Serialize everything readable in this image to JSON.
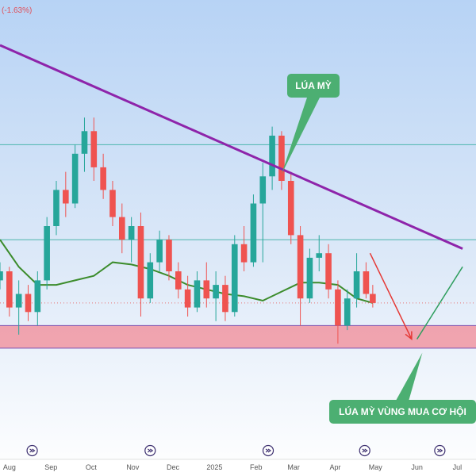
{
  "header": {
    "change_text": "(-1.63%)"
  },
  "colors": {
    "up": "#26a69a",
    "down": "#ef5350",
    "trendline": "#8e24aa",
    "ma": "#3c8c2c",
    "zone": "#f28a96",
    "zone_border": "#7b4fb0",
    "hline": "#4db6ac",
    "callout": "#4caf72",
    "arrow_down": "#e53935",
    "arrow_up": "#2e9e5e"
  },
  "callouts": {
    "top": "LÚA MỲ",
    "bottom": "LÚA MỲ VÙNG MUA CƠ HỘI"
  },
  "events": {
    "icon": "event-icon"
  },
  "chart_data": {
    "type": "candlestick",
    "title": "",
    "x_ticks": [
      "Aug",
      "Sep",
      "Oct",
      "Nov",
      "Dec",
      "2025",
      "Feb",
      "Mar",
      "Apr",
      "May",
      "Jun",
      "Jul"
    ],
    "x_range": [
      "2024-07-25",
      "2025-07-15"
    ],
    "y_range": [
      0,
      100
    ],
    "y_axis": "hidden",
    "grid": false,
    "reference_lines": [
      {
        "kind": "horizontal",
        "value": 68
      },
      {
        "kind": "horizontal",
        "value": 47
      }
    ],
    "zone": {
      "low": 23,
      "high": 28
    },
    "trendline": {
      "from": [
        "2024-07-25",
        90
      ],
      "to": [
        "2025-07-05",
        45
      ]
    },
    "moving_average": [
      [
        "2024-07-25",
        47
      ],
      [
        "2024-08-08",
        41
      ],
      [
        "2024-08-22",
        37
      ],
      [
        "2024-09-05",
        37
      ],
      [
        "2024-09-19",
        38
      ],
      [
        "2024-10-03",
        39
      ],
      [
        "2024-10-17",
        42
      ],
      [
        "2024-10-31",
        41.5
      ],
      [
        "2024-11-14",
        40.5
      ],
      [
        "2024-11-28",
        39
      ],
      [
        "2024-12-12",
        37
      ],
      [
        "2024-12-26",
        36
      ],
      [
        "2025-01-09",
        35
      ],
      [
        "2025-01-23",
        34.5
      ],
      [
        "2025-02-06",
        33.5
      ],
      [
        "2025-02-20",
        35.5
      ],
      [
        "2025-03-06",
        37.5
      ],
      [
        "2025-03-20",
        37.5
      ],
      [
        "2025-04-03",
        37
      ],
      [
        "2025-04-17",
        34
      ],
      [
        "2025-04-29",
        33
      ]
    ],
    "candles": [
      [
        "2024-07-25",
        38,
        42,
        36,
        40
      ],
      [
        "2024-08-01",
        40,
        41,
        30,
        32
      ],
      [
        "2024-08-08",
        32,
        38,
        26,
        35
      ],
      [
        "2024-08-15",
        35,
        37,
        29,
        31
      ],
      [
        "2024-08-22",
        31,
        40,
        28,
        38
      ],
      [
        "2024-08-29",
        38,
        52,
        36,
        50
      ],
      [
        "2024-09-05",
        50,
        60,
        48,
        58
      ],
      [
        "2024-09-12",
        58,
        62,
        52,
        55
      ],
      [
        "2024-09-19",
        55,
        68,
        54,
        66
      ],
      [
        "2024-09-26",
        66,
        74,
        62,
        71
      ],
      [
        "2024-10-03",
        71,
        74,
        60,
        63
      ],
      [
        "2024-10-10",
        63,
        66,
        56,
        58
      ],
      [
        "2024-10-17",
        58,
        60,
        50,
        52
      ],
      [
        "2024-10-24",
        52,
        55,
        44,
        47
      ],
      [
        "2024-10-31",
        47,
        52,
        42,
        50
      ],
      [
        "2024-11-07",
        50,
        53,
        30,
        34
      ],
      [
        "2024-11-14",
        34,
        44,
        33,
        42
      ],
      [
        "2024-11-21",
        42,
        49,
        40,
        47
      ],
      [
        "2024-11-28",
        47,
        48,
        38,
        40
      ],
      [
        "2024-12-05",
        40,
        42,
        34,
        36
      ],
      [
        "2024-12-12",
        36,
        39,
        30,
        32
      ],
      [
        "2024-12-19",
        32,
        40,
        31,
        38
      ],
      [
        "2024-12-26",
        38,
        42,
        32,
        34
      ],
      [
        "2025-01-02",
        34,
        40,
        29,
        37
      ],
      [
        "2025-01-09",
        37,
        39,
        29,
        31
      ],
      [
        "2025-01-16",
        31,
        48,
        30,
        46
      ],
      [
        "2025-01-23",
        46,
        50,
        40,
        42
      ],
      [
        "2025-01-30",
        42,
        57,
        41,
        55
      ],
      [
        "2025-02-06",
        55,
        64,
        42,
        61
      ],
      [
        "2025-02-13",
        61,
        72,
        58,
        70
      ],
      [
        "2025-02-20",
        70,
        71,
        58,
        60
      ],
      [
        "2025-02-27",
        60,
        62,
        46,
        48
      ],
      [
        "2025-03-06",
        48,
        50,
        28,
        34
      ],
      [
        "2025-03-13",
        34,
        45,
        33,
        43
      ],
      [
        "2025-03-20",
        43,
        48,
        40,
        44
      ],
      [
        "2025-03-27",
        44,
        46,
        34,
        36
      ],
      [
        "2025-04-03",
        36,
        38,
        24,
        28
      ],
      [
        "2025-04-10",
        28,
        36,
        27,
        34
      ],
      [
        "2025-04-17",
        34,
        44,
        32,
        40
      ],
      [
        "2025-04-24",
        40,
        42,
        34,
        35
      ],
      [
        "2025-04-29",
        35,
        37,
        32,
        33
      ]
    ],
    "projection": [
      {
        "direction": "down",
        "from": [
          "2025-04-27",
          44
        ],
        "to": [
          "2025-05-28",
          25
        ]
      },
      {
        "direction": "up",
        "from": [
          "2025-06-01",
          25
        ],
        "to": [
          "2025-07-05",
          41
        ]
      }
    ],
    "event_markers": [
      "2024-08-18",
      "2024-11-14",
      "2025-02-10",
      "2025-04-23",
      "2025-06-18"
    ]
  }
}
